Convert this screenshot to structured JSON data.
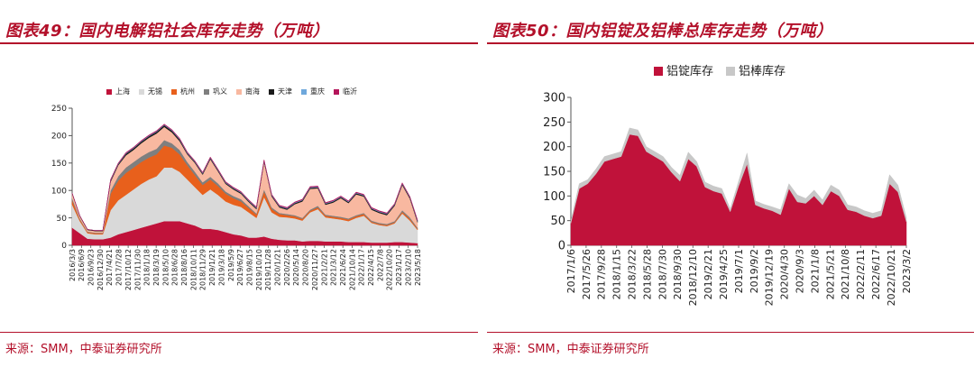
{
  "left": {
    "title": "图表49：国内电解铝社会库存走势（万吨）",
    "source": "来源：SMM，中泰证券研究所"
  },
  "right": {
    "title": "图表50：国内铝锭及铝棒总库存走势（万吨）",
    "source": "来源：SMM，中泰证券研究所"
  },
  "chart_data": [
    {
      "type": "area",
      "stacked": true,
      "title": "",
      "xlabel": "",
      "ylabel": "",
      "ylim": [
        0,
        250
      ],
      "yticks": [
        0,
        50,
        100,
        150,
        200,
        250
      ],
      "legend_position": "top-center",
      "tick_labels": [
        "2016/3/3",
        "2016/6/9",
        "2016/9/23",
        "2016/12/30",
        "2017/4/21",
        "2017/7/28",
        "2017/10/12",
        "2017/11/30",
        "2018/1/18",
        "2018/3/19",
        "2018/5/10",
        "2018/6/28",
        "2018/8/16",
        "2018/10/11",
        "2018/11/29",
        "2019/1/21",
        "2019/3/18",
        "2019/5/9",
        "2019/6/27",
        "2019/8/15",
        "2019/10/10",
        "2019/11/28",
        "2020/1/21",
        "2020/2/26",
        "2020/5/14",
        "2020/8/20",
        "2020/11/27",
        "2021/2/21",
        "2021/3/12",
        "2021/6/24",
        "2021/10/14",
        "2022/1/17",
        "2022/4/15",
        "2022/7/8",
        "2022/10/20",
        "2023/1/17",
        "2023/2/10",
        "2023/5/18"
      ],
      "x": [
        "2016/3",
        "2016/5",
        "2016/7",
        "2016/9",
        "2016/11",
        "2017/1",
        "2017/3",
        "2017/5",
        "2017/7",
        "2017/9",
        "2017/11",
        "2018/1",
        "2018/3",
        "2018/5",
        "2018/7",
        "2018/9",
        "2018/11",
        "2019/1",
        "2019/3",
        "2019/5",
        "2019/7",
        "2019/9",
        "2019/11",
        "2020/1",
        "2020/2",
        "2020/3",
        "2020/5",
        "2020/7",
        "2020/9",
        "2020/11",
        "2021/1",
        "2021/3",
        "2021/5",
        "2021/7",
        "2021/9",
        "2021/11",
        "2022/1",
        "2022/3",
        "2022/5",
        "2022/7",
        "2022/9",
        "2022/11",
        "2023/1",
        "2023/2",
        "2023/3",
        "2023/5"
      ],
      "series": [
        {
          "name": "上海",
          "color": "#c0123a",
          "values": [
            32,
            22,
            12,
            11,
            11,
            14,
            20,
            24,
            28,
            32,
            36,
            40,
            44,
            44,
            44,
            40,
            36,
            30,
            30,
            28,
            24,
            20,
            18,
            14,
            14,
            16,
            12,
            10,
            9,
            9,
            7,
            8,
            8,
            7,
            7,
            7,
            6,
            6,
            6,
            5,
            5,
            5,
            6,
            6,
            5,
            4
          ]
        },
        {
          "name": "无锡",
          "color": "#d9d9d9",
          "values": [
            42,
            22,
            10,
            9,
            9,
            50,
            62,
            68,
            74,
            80,
            84,
            86,
            98,
            98,
            90,
            80,
            70,
            62,
            72,
            64,
            56,
            54,
            52,
            46,
            36,
            72,
            48,
            42,
            42,
            40,
            38,
            52,
            58,
            44,
            42,
            40,
            38,
            44,
            48,
            36,
            32,
            30,
            34,
            52,
            40,
            24
          ]
        },
        {
          "name": "杭州",
          "color": "#e8601c",
          "values": [
            8,
            3,
            2,
            2,
            2,
            30,
            36,
            40,
            40,
            40,
            40,
            40,
            40,
            36,
            32,
            26,
            22,
            18,
            18,
            16,
            14,
            12,
            10,
            8,
            6,
            10,
            6,
            5,
            4,
            4,
            3,
            3,
            3,
            3,
            3,
            3,
            3,
            3,
            3,
            2,
            2,
            2,
            2,
            3,
            3,
            2
          ]
        },
        {
          "name": "巩义",
          "color": "#7f7f7f",
          "values": [
            4,
            2,
            1,
            1,
            1,
            6,
            8,
            10,
            10,
            10,
            10,
            10,
            10,
            8,
            8,
            6,
            6,
            5,
            5,
            5,
            4,
            4,
            4,
            3,
            2,
            4,
            3,
            2,
            2,
            2,
            2,
            2,
            3,
            2,
            2,
            2,
            2,
            2,
            2,
            2,
            2,
            2,
            2,
            3,
            3,
            2
          ]
        },
        {
          "name": "南海",
          "color": "#f8b8a0",
          "values": [
            8,
            4,
            3,
            3,
            3,
            16,
            20,
            22,
            22,
            24,
            26,
            28,
            24,
            20,
            16,
            14,
            16,
            14,
            32,
            22,
            14,
            12,
            10,
            8,
            8,
            50,
            20,
            10,
            8,
            20,
            30,
            38,
            32,
            18,
            24,
            34,
            28,
            38,
            30,
            20,
            18,
            16,
            28,
            46,
            34,
            10
          ]
        },
        {
          "name": "天津",
          "color": "#1a1a1a",
          "values": [
            1,
            1,
            1,
            1,
            1,
            2,
            2,
            3,
            3,
            3,
            3,
            3,
            3,
            3,
            3,
            2,
            2,
            2,
            2,
            2,
            2,
            2,
            2,
            2,
            2,
            2,
            2,
            2,
            2,
            2,
            2,
            2,
            2,
            2,
            2,
            2,
            2,
            2,
            2,
            2,
            2,
            2,
            2,
            2,
            2,
            2
          ]
        },
        {
          "name": "重庆",
          "color": "#6fa8dc",
          "values": [
            0,
            0,
            0,
            0,
            0,
            1,
            1,
            1,
            1,
            1,
            1,
            1,
            1,
            1,
            1,
            1,
            1,
            1,
            1,
            1,
            1,
            1,
            1,
            1,
            1,
            1,
            1,
            1,
            1,
            1,
            1,
            1,
            1,
            1,
            1,
            1,
            1,
            1,
            1,
            1,
            1,
            1,
            1,
            1,
            1,
            1
          ]
        },
        {
          "name": "临沂",
          "color": "#b4145a",
          "values": [
            0,
            0,
            0,
            0,
            0,
            1,
            1,
            1,
            1,
            1,
            1,
            1,
            1,
            1,
            1,
            1,
            1,
            1,
            1,
            1,
            1,
            1,
            1,
            1,
            1,
            1,
            1,
            1,
            1,
            1,
            1,
            1,
            1,
            1,
            1,
            1,
            1,
            1,
            1,
            1,
            1,
            1,
            1,
            1,
            1,
            1
          ]
        }
      ]
    },
    {
      "type": "area",
      "stacked": true,
      "title": "",
      "xlabel": "",
      "ylabel": "",
      "ylim": [
        0,
        300
      ],
      "yticks": [
        0,
        50,
        100,
        150,
        200,
        250,
        300
      ],
      "legend_position": "top-center",
      "tick_labels": [
        "2017/1/6",
        "2017/5/26",
        "2017/9/28",
        "2018/1/15",
        "2018/3/22",
        "2018/5/28",
        "2018/7/30",
        "2018/9/30",
        "2018/12/10",
        "2019/2/21",
        "2019/4/25",
        "2019/7/1",
        "2019/9/2",
        "2019/12/19",
        "2020/4/30",
        "2020/9/3",
        "2021/1/8",
        "2021/5/21",
        "2021/10/8",
        "2022/2/11",
        "2022/6/17",
        "2022/10/21",
        "2023/3/2"
      ],
      "x": [
        "2017/1",
        "2017/3",
        "2017/5",
        "2017/7",
        "2017/9",
        "2017/11",
        "2018/1",
        "2018/3",
        "2018/5",
        "2018/7",
        "2018/9",
        "2018/11",
        "2019/1",
        "2019/3",
        "2019/5",
        "2019/7",
        "2019/9",
        "2019/11",
        "2019/12",
        "2020/2",
        "2020/3",
        "2020/5",
        "2020/7",
        "2020/9",
        "2020/11",
        "2021/1",
        "2021/3",
        "2021/5",
        "2021/7",
        "2021/9",
        "2021/11",
        "2022/1",
        "2022/3",
        "2022/5",
        "2022/7",
        "2022/9",
        "2022/11",
        "2023/1",
        "2023/2",
        "2023/3",
        "2023/5"
      ],
      "series": [
        {
          "name": "铝锭库存",
          "color": "#c0123a",
          "values": [
            45,
            115,
            125,
            145,
            170,
            175,
            180,
            225,
            222,
            190,
            180,
            170,
            148,
            130,
            175,
            160,
            118,
            110,
            105,
            68,
            120,
            165,
            82,
            75,
            70,
            62,
            115,
            88,
            85,
            100,
            82,
            110,
            100,
            72,
            68,
            60,
            55,
            60,
            125,
            108,
            48
          ]
        },
        {
          "name": "铝棒库存",
          "color": "#c8c8c8",
          "values": [
            5,
            10,
            8,
            10,
            10,
            10,
            10,
            13,
            12,
            10,
            10,
            10,
            10,
            12,
            14,
            10,
            10,
            10,
            10,
            6,
            10,
            22,
            8,
            8,
            8,
            10,
            10,
            14,
            10,
            12,
            10,
            12,
            12,
            10,
            10,
            10,
            10,
            10,
            18,
            14,
            8
          ]
        }
      ]
    }
  ]
}
